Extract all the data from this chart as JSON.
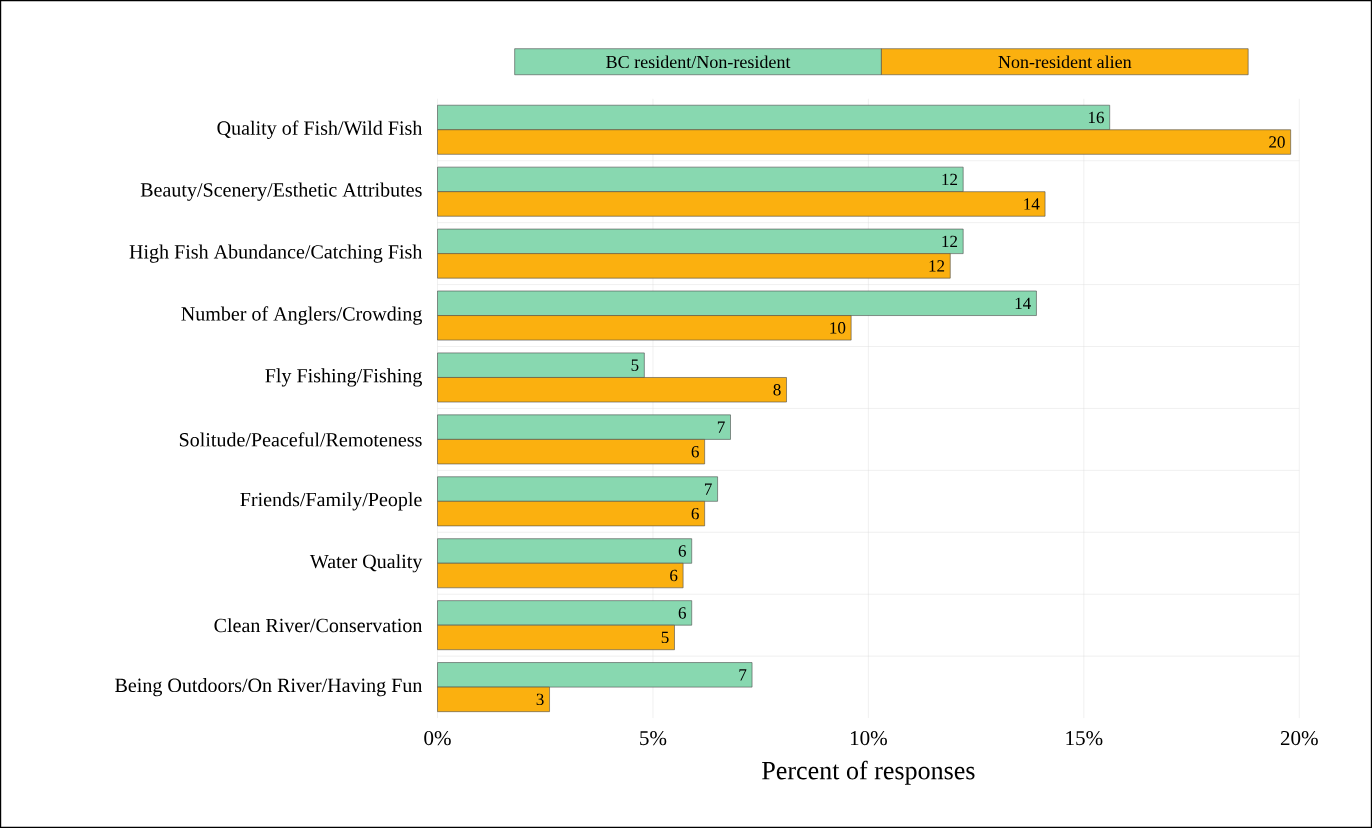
{
  "chart_data": {
    "type": "bar",
    "orientation": "horizontal",
    "xlabel": "Percent of responses",
    "categories": [
      "Quality of Fish/Wild Fish",
      "Beauty/Scenery/Esthetic Attributes",
      "High Fish Abundance/Catching Fish",
      "Number of Anglers/Crowding",
      "Fly Fishing/Fishing",
      "Solitude/Peaceful/Remoteness",
      "Friends/Family/People",
      "Water Quality",
      "Clean River/Conservation",
      "Being Outdoors/On River/Having Fun"
    ],
    "series": [
      {
        "name": "BC resident/Non-resident",
        "color": "#88d8b0",
        "values": [
          15.6,
          12.2,
          12.2,
          13.9,
          4.8,
          6.8,
          6.5,
          5.9,
          5.9,
          7.3
        ],
        "value_labels": [
          "16",
          "12",
          "12",
          "14",
          "5",
          "7",
          "7",
          "6",
          "6",
          "7"
        ]
      },
      {
        "name": "Non-resident alien",
        "color": "#fbb00f",
        "values": [
          19.8,
          14.1,
          11.9,
          9.6,
          8.1,
          6.2,
          6.2,
          5.7,
          5.5,
          2.6
        ],
        "value_labels": [
          "20",
          "14",
          "12",
          "10",
          "8",
          "6",
          "6",
          "6",
          "5",
          "3"
        ]
      }
    ],
    "xlim": [
      0,
      20
    ],
    "xticks": [
      {
        "value": 0,
        "label": "0%"
      },
      {
        "value": 5,
        "label": "5%"
      },
      {
        "value": 10,
        "label": "10%"
      },
      {
        "value": 15,
        "label": "15%"
      },
      {
        "value": 20,
        "label": "20%"
      }
    ],
    "grid": true,
    "legend": "top"
  }
}
